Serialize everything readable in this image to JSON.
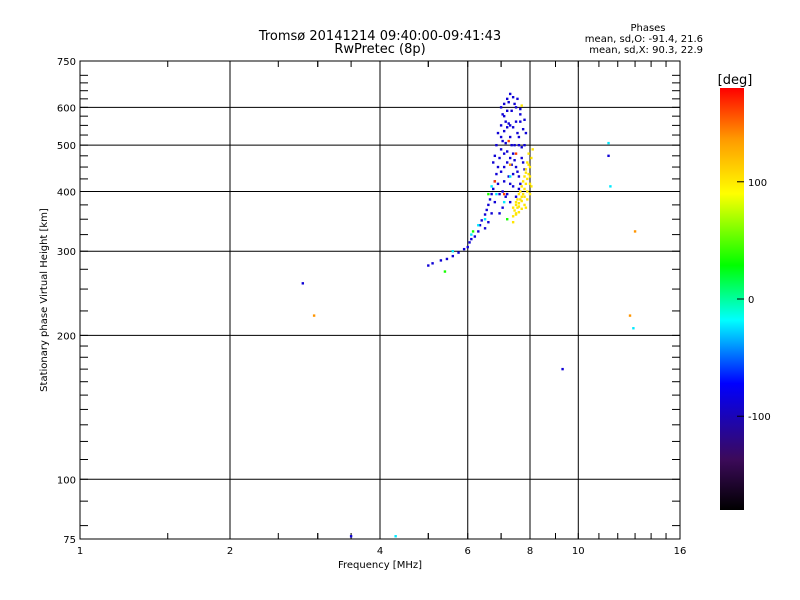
{
  "chart_data": {
    "type": "scatter",
    "title": "Tromsø 20141214 09:40:00-09:41:43",
    "subtitle": "RwPretec (8p)",
    "xlabel": "Frequency [MHz]",
    "ylabel": "Stationary phase Virtual Height [km]",
    "x_scale": "log",
    "y_scale": "log",
    "xlim": [
      1,
      16
    ],
    "ylim": [
      75,
      750
    ],
    "x_ticks": [
      1,
      2,
      4,
      6,
      8,
      10,
      16
    ],
    "y_ticks": [
      75,
      100,
      200,
      300,
      400,
      500,
      600,
      750
    ],
    "grid": true,
    "stats_header": "Phases",
    "stats_lines": [
      "mean, sd,O: -91.4, 21.6",
      "mean, sd,X: 90.3, 22.9"
    ],
    "colorbar": {
      "label": "[deg]",
      "range": [
        -180,
        180
      ],
      "ticks": [
        -100,
        0,
        100
      ],
      "colors": [
        "#000000",
        "#3c0a5a",
        "#0000ff",
        "#00ffff",
        "#00ff00",
        "#ffff00",
        "#ff9900",
        "#ff0000"
      ]
    },
    "series": [
      {
        "phase_deg": -90,
        "points": [
          [
            5.0,
            280
          ],
          [
            5.1,
            283
          ],
          [
            5.3,
            287
          ],
          [
            5.45,
            289
          ],
          [
            5.6,
            293
          ],
          [
            5.75,
            298
          ],
          [
            5.9,
            303
          ],
          [
            6.0,
            306
          ],
          [
            6.05,
            313
          ],
          [
            6.1,
            318
          ],
          [
            6.2,
            322
          ],
          [
            6.3,
            330
          ],
          [
            6.35,
            340
          ],
          [
            6.4,
            348
          ],
          [
            6.5,
            358
          ],
          [
            6.55,
            366
          ],
          [
            6.6,
            375
          ],
          [
            6.65,
            385
          ],
          [
            6.7,
            395
          ],
          [
            6.75,
            405
          ],
          [
            6.8,
            420
          ],
          [
            6.85,
            435
          ],
          [
            6.9,
            450
          ],
          [
            6.95,
            470
          ],
          [
            7.0,
            490
          ],
          [
            7.05,
            510
          ],
          [
            7.1,
            535
          ],
          [
            7.15,
            560
          ],
          [
            7.2,
            590
          ],
          [
            7.25,
            615
          ],
          [
            7.3,
            640
          ],
          [
            7.0,
            600
          ],
          [
            7.1,
            575
          ],
          [
            7.2,
            545
          ],
          [
            7.3,
            520
          ],
          [
            7.35,
            500
          ],
          [
            7.4,
            480
          ],
          [
            7.45,
            465
          ],
          [
            7.5,
            450
          ],
          [
            7.55,
            440
          ],
          [
            7.6,
            430
          ],
          [
            7.6,
            520
          ],
          [
            7.65,
            560
          ],
          [
            7.5,
            600
          ],
          [
            7.55,
            625
          ],
          [
            7.65,
            580
          ],
          [
            7.75,
            540
          ],
          [
            7.8,
            500
          ],
          [
            7.7,
            470
          ],
          [
            7.4,
            410
          ],
          [
            7.5,
            390
          ],
          [
            7.3,
            380
          ],
          [
            7.2,
            395
          ],
          [
            7.1,
            420
          ],
          [
            7.0,
            440
          ],
          [
            6.9,
            415
          ],
          [
            6.8,
            380
          ],
          [
            6.7,
            360
          ],
          [
            6.6,
            345
          ],
          [
            6.5,
            335
          ],
          [
            6.95,
            360
          ],
          [
            7.05,
            370
          ],
          [
            7.25,
            430
          ],
          [
            7.35,
            455
          ],
          [
            7.45,
            500
          ],
          [
            7.55,
            530
          ],
          [
            7.0,
            520
          ],
          [
            7.1,
            480
          ],
          [
            7.2,
            460
          ],
          [
            7.3,
            470
          ],
          [
            7.15,
            505
          ],
          [
            7.25,
            555
          ],
          [
            7.35,
            590
          ],
          [
            7.45,
            610
          ],
          [
            7.0,
            550
          ],
          [
            6.85,
            500
          ],
          [
            6.9,
            530
          ],
          [
            7.05,
            580
          ],
          [
            7.6,
            500
          ],
          [
            7.7,
            495
          ],
          [
            7.75,
            460
          ],
          [
            7.8,
            445
          ],
          [
            7.65,
            415
          ],
          [
            7.6,
            405
          ],
          [
            7.1,
            450
          ],
          [
            7.2,
            485
          ],
          [
            7.3,
            415
          ],
          [
            7.4,
            435
          ],
          [
            6.75,
            460
          ],
          [
            6.8,
            475
          ],
          [
            7.3,
            550
          ],
          [
            7.4,
            545
          ],
          [
            7.5,
            560
          ],
          [
            7.65,
            595
          ],
          [
            7.8,
            565
          ],
          [
            7.85,
            530
          ],
          [
            7.1,
            610
          ],
          [
            7.2,
            625
          ],
          [
            7.4,
            630
          ],
          [
            6.95,
            395
          ],
          [
            7.05,
            400
          ],
          [
            7.15,
            390
          ],
          [
            9.3,
            170
          ],
          [
            3.5,
            76
          ],
          [
            2.8,
            257
          ],
          [
            11.5,
            475
          ]
        ]
      },
      {
        "phase_deg": -30,
        "points": [
          [
            5.6,
            300
          ],
          [
            6.1,
            325
          ],
          [
            6.3,
            340
          ],
          [
            6.5,
            350
          ],
          [
            6.85,
            395
          ],
          [
            7.3,
            430
          ],
          [
            11.5,
            505
          ],
          [
            11.6,
            410
          ],
          [
            12.9,
            207
          ],
          [
            4.3,
            76
          ],
          [
            6.7,
            410
          ],
          [
            7.1,
            380
          ]
        ]
      },
      {
        "phase_deg": 30,
        "points": [
          [
            5.4,
            272
          ],
          [
            6.15,
            330
          ],
          [
            6.6,
            395
          ],
          [
            7.2,
            350
          ]
        ]
      },
      {
        "phase_deg": 90,
        "points": [
          [
            7.4,
            355
          ],
          [
            7.5,
            360
          ],
          [
            7.55,
            370
          ],
          [
            7.6,
            378
          ],
          [
            7.65,
            385
          ],
          [
            7.7,
            390
          ],
          [
            7.75,
            395
          ],
          [
            7.8,
            405
          ],
          [
            7.85,
            415
          ],
          [
            7.9,
            425
          ],
          [
            7.95,
            435
          ],
          [
            8.0,
            450
          ],
          [
            8.05,
            470
          ],
          [
            8.1,
            490
          ],
          [
            7.5,
            375
          ],
          [
            7.6,
            395
          ],
          [
            7.7,
            410
          ],
          [
            7.8,
            430
          ],
          [
            7.85,
            445
          ],
          [
            7.9,
            460
          ],
          [
            7.95,
            480
          ],
          [
            7.45,
            365
          ],
          [
            7.55,
            385
          ],
          [
            7.65,
            400
          ],
          [
            7.75,
            420
          ],
          [
            7.85,
            438
          ],
          [
            7.95,
            455
          ],
          [
            8.0,
            430
          ],
          [
            8.05,
            410
          ],
          [
            8.0,
            395
          ],
          [
            7.9,
            385
          ],
          [
            7.8,
            375
          ],
          [
            7.7,
            368
          ],
          [
            7.6,
            362
          ],
          [
            7.5,
            358
          ],
          [
            7.4,
            370
          ],
          [
            7.5,
            380
          ],
          [
            7.6,
            372
          ],
          [
            7.7,
            382
          ],
          [
            7.8,
            390
          ],
          [
            7.9,
            400
          ],
          [
            8.0,
            415
          ],
          [
            7.7,
            605
          ],
          [
            7.4,
            345
          ],
          [
            7.85,
            370
          ]
        ]
      },
      {
        "phase_deg": 130,
        "points": [
          [
            2.95,
            220
          ],
          [
            13.0,
            330
          ],
          [
            12.7,
            220
          ],
          [
            7.3,
            455
          ]
        ]
      },
      {
        "phase_deg": 160,
        "points": [
          [
            6.8,
            420
          ],
          [
            7.1,
            395
          ],
          [
            7.5,
            480
          ],
          [
            7.25,
            510
          ]
        ]
      }
    ]
  }
}
